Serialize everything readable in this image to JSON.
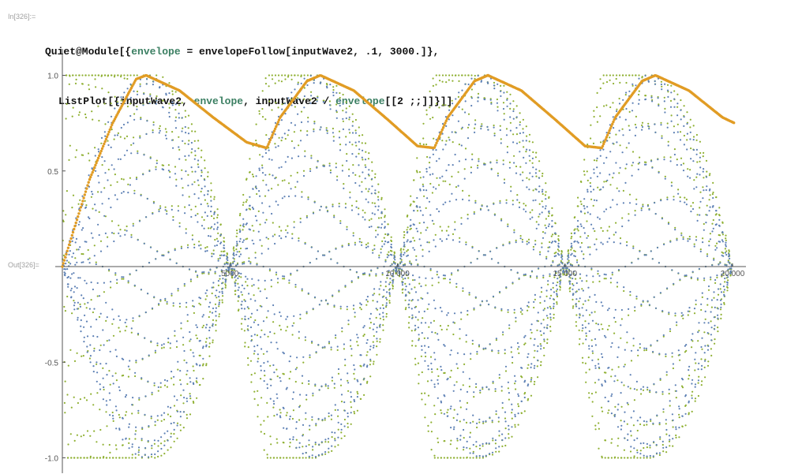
{
  "input_label": "In[326]:=",
  "output_label": "Out[326]=",
  "code": {
    "line1": [
      {
        "t": "Quiet@Module[{",
        "c": "plain"
      },
      {
        "t": "envelope",
        "c": "var"
      },
      {
        "t": " = envelopeFollow[inputWave2, .1, 3000.]},",
        "c": "plain"
      }
    ],
    "line2": [
      {
        "t": "ListPlot[{inputWave2, ",
        "c": "plain"
      },
      {
        "t": "envelope",
        "c": "var"
      },
      {
        "t": ", inputWave2 / ",
        "c": "plain"
      },
      {
        "t": "envelope",
        "c": "var"
      },
      {
        "t": "[[2 ;;]]}]]",
        "c": "plain"
      }
    ]
  },
  "chart_data": {
    "type": "scatter",
    "x_ticks": [
      {
        "value": 5000,
        "label": "5000"
      },
      {
        "value": 10000,
        "label": "10 000"
      },
      {
        "value": 15000,
        "label": "15 000"
      },
      {
        "value": 20000,
        "label": "20 000"
      }
    ],
    "y_ticks": [
      {
        "value": 1.0,
        "label": "1.0"
      },
      {
        "value": 0.5,
        "label": "0.5"
      },
      {
        "value": -0.5,
        "label": "-0.5"
      },
      {
        "value": -1.0,
        "label": "-1.0"
      }
    ],
    "xlim": [
      0,
      20000
    ],
    "ylim": [
      -1.0,
      1.0
    ],
    "series": [
      {
        "color": "#5e81b5",
        "values": "inputWave2 — amplitude-modulated oscillation, 4 lobes of period 5000"
      },
      {
        "color": "#e19c24",
        "values": "envelope — rises to ~1.0 then decays to ~0.62 each cycle"
      },
      {
        "color": "#8fb032",
        "values": "inputWave2 / envelope — normalized to ±1.0"
      }
    ],
    "envelope_points": [
      [
        0,
        0.0
      ],
      [
        800,
        0.45
      ],
      [
        1500,
        0.75
      ],
      [
        2200,
        0.98
      ],
      [
        2500,
        1.0
      ],
      [
        3500,
        0.92
      ],
      [
        4500,
        0.78
      ],
      [
        5500,
        0.65
      ],
      [
        6100,
        0.62
      ],
      [
        6500,
        0.78
      ],
      [
        7300,
        0.97
      ],
      [
        7700,
        1.0
      ],
      [
        8700,
        0.92
      ],
      [
        9700,
        0.77
      ],
      [
        10600,
        0.63
      ],
      [
        11100,
        0.62
      ],
      [
        11500,
        0.78
      ],
      [
        12300,
        0.97
      ],
      [
        12700,
        1.0
      ],
      [
        13700,
        0.92
      ],
      [
        14700,
        0.77
      ],
      [
        15600,
        0.63
      ],
      [
        16100,
        0.62
      ],
      [
        16500,
        0.78
      ],
      [
        17300,
        0.97
      ],
      [
        17700,
        1.0
      ],
      [
        18700,
        0.92
      ],
      [
        19700,
        0.78
      ],
      [
        20300,
        0.73
      ]
    ]
  }
}
